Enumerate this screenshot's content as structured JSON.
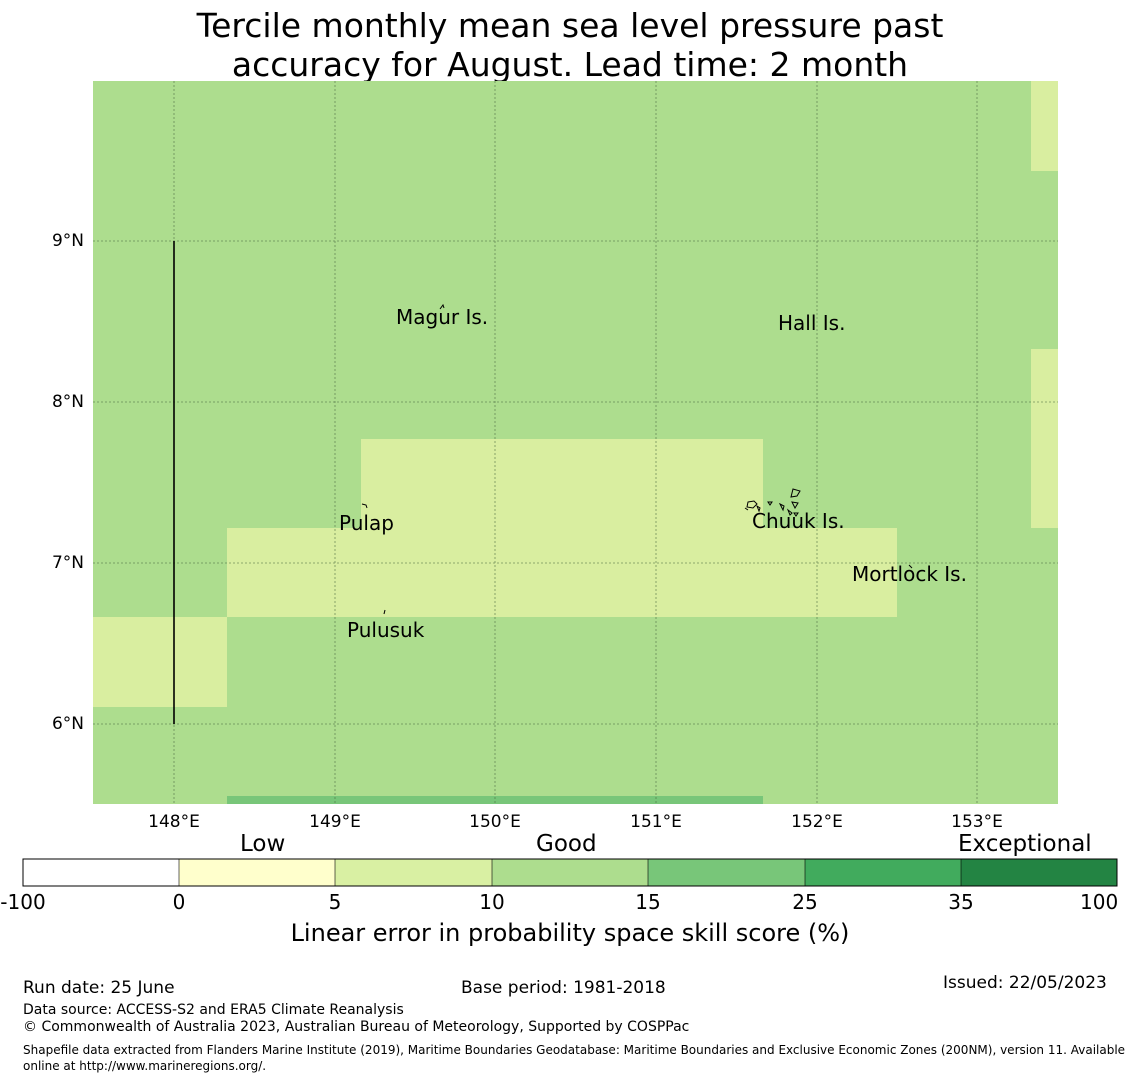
{
  "title": {
    "line1": "Tercile monthly mean sea level pressure past",
    "line2": "accuracy for August. Lead time: 2 month"
  },
  "map": {
    "lat_ticks": [
      "9°N",
      "8°N",
      "7°N",
      "6°N"
    ],
    "lon_ticks": [
      "148°E",
      "149°E",
      "150°E",
      "151°E",
      "152°E",
      "153°E"
    ],
    "places": [
      "Magur Is.",
      "Hall Is.",
      "Pulap",
      "Chuuk Is.",
      "Mortlock Is.",
      "Pulusuk"
    ],
    "colors": {
      "band_5_10": "#d9eea0",
      "band_10_15": "#addd8e",
      "band_15_25": "#78c679",
      "gridline": "#4a6a40"
    }
  },
  "colorbar": {
    "categories": [
      "Low",
      "Good",
      "Exceptional"
    ],
    "ticks": [
      "-100",
      "0",
      "5",
      "10",
      "15",
      "25",
      "35",
      "100"
    ],
    "colors": [
      "#ffffff",
      "#ffffcc",
      "#d9f0a3",
      "#addd8e",
      "#78c679",
      "#41ab5d",
      "#238443"
    ],
    "label": "Linear error in probability space skill score (%)"
  },
  "footer": {
    "run_date": "Run date: 25 June",
    "base_period": "Base period: 1981-2018",
    "issued": "Issued: 22/05/2023",
    "data_source": "Data source: ACCESS-S2 and ERA5 Climate Reanalysis",
    "copyright": "© Commonwealth of Australia 2023, Australian Bureau of Meteorology, Supported by COSPPac",
    "shapefile": "Shapefile data extracted from Flanders Marine Institute (2019), Maritime Boundaries Geodatabase: Maritime Boundaries and Exclusive Economic Zones (200NM), version 11. Available online at http://www.marineregions.org/."
  }
}
